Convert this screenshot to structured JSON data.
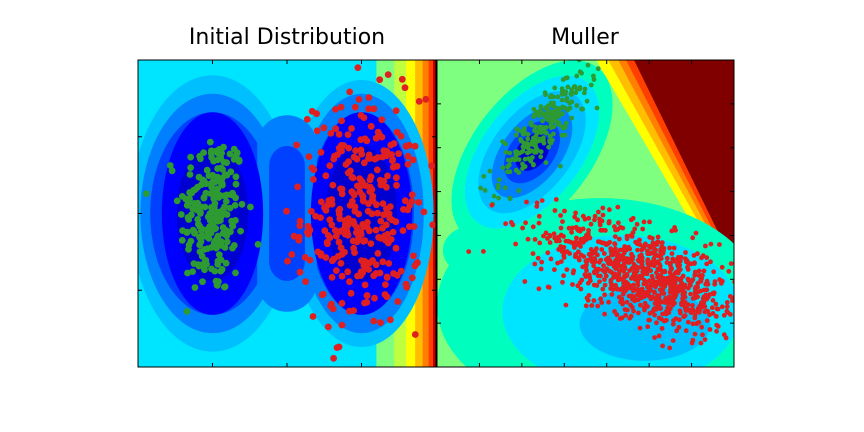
{
  "chart_data": [
    {
      "type": "scatter",
      "title": "Initial Distribution",
      "background": "contour",
      "colormap": "jet",
      "xlim": [
        -2,
        2
      ],
      "ylim": [
        -2,
        2
      ],
      "series": [
        {
          "color": "#2e9a32",
          "center": [
            -1.0,
            0.0
          ],
          "spread": [
            0.22,
            0.55
          ],
          "count": 220
        },
        {
          "color": "#e02020",
          "center": [
            1.0,
            0.0
          ],
          "spread": [
            0.4,
            0.75
          ],
          "count": 330
        }
      ]
    },
    {
      "type": "scatter",
      "title": "Muller",
      "background": "contour",
      "colormap": "jet",
      "xlim": [
        -1.5,
        1.0
      ],
      "ylim": [
        -0.5,
        2.0
      ],
      "series": [
        {
          "color": "#2e9a32",
          "center": [
            -0.6,
            1.45
          ],
          "spread": [
            0.3,
            0.08
          ],
          "count": 230
        },
        {
          "color": "#e02020",
          "center": [
            0.25,
            0.25
          ],
          "spread": [
            0.45,
            0.18
          ],
          "count": 900
        }
      ]
    }
  ],
  "colors": {
    "green_points": "#2e9a32",
    "red_points": "#e02020",
    "muller_high": "#800000"
  }
}
